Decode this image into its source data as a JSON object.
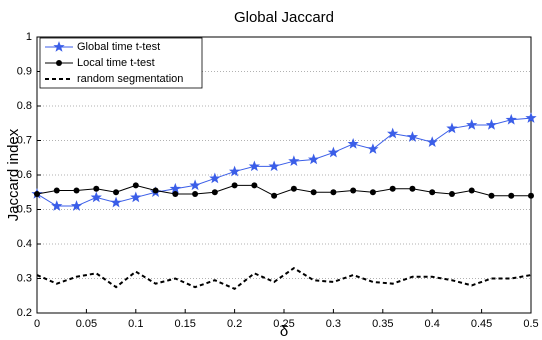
{
  "chart_data": {
    "type": "line",
    "title": "Global Jaccard",
    "x_label": "δ",
    "y_label": "Jaccard index",
    "x": [
      0,
      0.02,
      0.04,
      0.06,
      0.08,
      0.1,
      0.12,
      0.14,
      0.16,
      0.18,
      0.2,
      0.22,
      0.24,
      0.26,
      0.28,
      0.3,
      0.32,
      0.34,
      0.36,
      0.38,
      0.4,
      0.42,
      0.44,
      0.46,
      0.48,
      0.5
    ],
    "series": [
      {
        "name": "Global time t-test",
        "color": "#3b5ee8",
        "marker": "star",
        "linestyle": "solid",
        "values": [
          0.545,
          0.51,
          0.51,
          0.535,
          0.52,
          0.535,
          0.55,
          0.56,
          0.57,
          0.59,
          0.61,
          0.625,
          0.625,
          0.64,
          0.645,
          0.665,
          0.69,
          0.675,
          0.72,
          0.71,
          0.695,
          0.735,
          0.745,
          0.745,
          0.76,
          0.765
        ]
      },
      {
        "name": "Local time t-test",
        "color": "#000000",
        "marker": "circle",
        "linestyle": "solid",
        "values": [
          0.545,
          0.555,
          0.555,
          0.56,
          0.55,
          0.57,
          0.555,
          0.545,
          0.545,
          0.55,
          0.57,
          0.57,
          0.54,
          0.56,
          0.55,
          0.55,
          0.555,
          0.55,
          0.56,
          0.56,
          0.55,
          0.545,
          0.555,
          0.54,
          0.54,
          0.54
        ]
      },
      {
        "name": "random segmentation",
        "color": "#000000",
        "marker": "none",
        "linestyle": "dashed",
        "values": [
          0.31,
          0.285,
          0.305,
          0.315,
          0.275,
          0.32,
          0.285,
          0.3,
          0.275,
          0.295,
          0.27,
          0.315,
          0.29,
          0.33,
          0.295,
          0.29,
          0.31,
          0.29,
          0.285,
          0.305,
          0.305,
          0.295,
          0.28,
          0.3,
          0.3,
          0.31
        ]
      }
    ],
    "xlim": [
      0,
      0.5
    ],
    "xticks": [
      0,
      0.05,
      0.1,
      0.15,
      0.2,
      0.25,
      0.3,
      0.35,
      0.4,
      0.45,
      0.5
    ],
    "ylim": [
      0.2,
      1
    ],
    "yticks": [
      0.2,
      0.3,
      0.4,
      0.5,
      0.6,
      0.7,
      0.8,
      0.9,
      1
    ],
    "grid": "y",
    "legend": "upper left"
  }
}
